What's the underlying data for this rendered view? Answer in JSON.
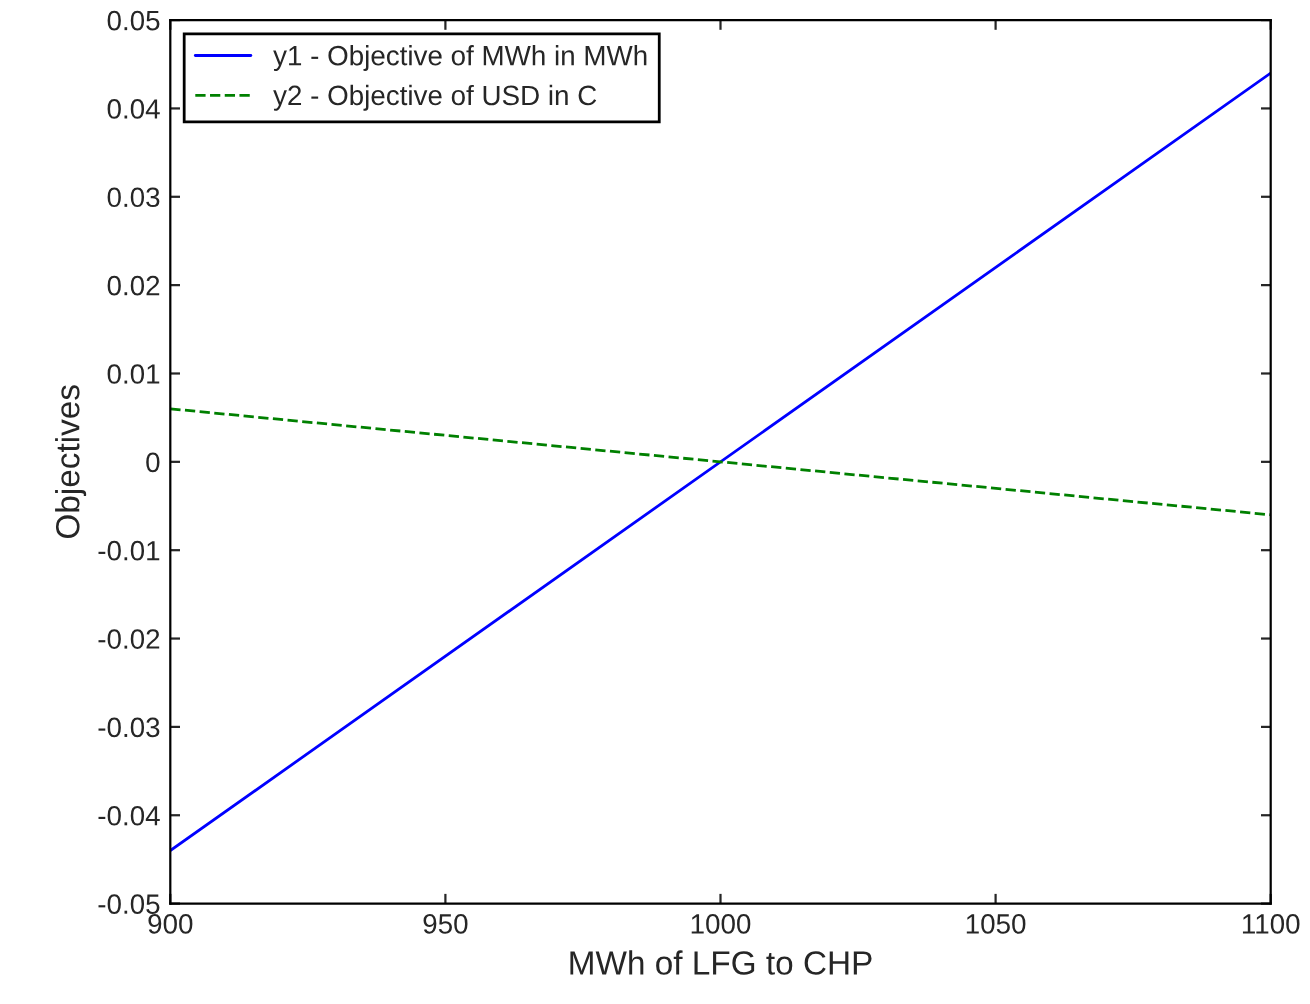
{
  "chart_data": {
    "type": "line",
    "xlabel": "MWh of LFG to CHP",
    "ylabel": "Objectives",
    "x": [
      900,
      1100
    ],
    "series": [
      {
        "name": "y1 - Objective of MWh in MWh",
        "color": "#0000ff",
        "values": [
          -0.044,
          0.044
        ],
        "line_style": "solid"
      },
      {
        "name": "y2 - Objective of USD in C",
        "color": "#008000",
        "values": [
          0.006,
          -0.006
        ],
        "line_style": "dashed"
      }
    ],
    "xlim": [
      900,
      1100
    ],
    "xticks": [
      900,
      950,
      1000,
      1050,
      1100
    ],
    "ylim": [
      -0.05,
      0.05
    ],
    "yticks": [
      {
        "value": -0.05,
        "label": "-0.05"
      },
      {
        "value": -0.04,
        "label": "-0.04"
      },
      {
        "value": -0.03,
        "label": "-0.03"
      },
      {
        "value": -0.02,
        "label": "-0.02"
      },
      {
        "value": -0.01,
        "label": "-0.01"
      },
      {
        "value": 0,
        "label": "0"
      },
      {
        "value": 0.01,
        "label": "0.01"
      },
      {
        "value": 0.02,
        "label": "0.02"
      },
      {
        "value": 0.03,
        "label": "0.03"
      },
      {
        "value": 0.04,
        "label": "0.04"
      },
      {
        "value": 0.05,
        "label": "0.05"
      }
    ],
    "legend": "top left",
    "grid": false
  }
}
